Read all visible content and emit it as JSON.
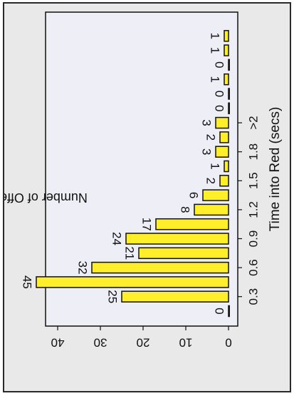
{
  "chart_data": {
    "type": "bar",
    "orientation": "rotated 90° clockwise",
    "xlabel": "Time into Red (secs)",
    "ylabel": "Number of Offenders",
    "x_ticks": [
      "0.3",
      "0.6",
      "0.9",
      "1.2",
      "1.5",
      "1.8",
      ">2"
    ],
    "y_ticks": [
      "0",
      "10",
      "20",
      "30",
      "40"
    ],
    "ylim": [
      0,
      46
    ],
    "grid": false,
    "values": [
      0,
      25,
      45,
      32,
      21,
      24,
      17,
      8,
      6,
      2,
      1,
      3,
      2,
      3,
      0,
      0,
      1,
      0,
      1,
      1
    ],
    "bar_color": "#ffee2a",
    "bar_edge_color": "#111111",
    "plot_background": "#eeeef6",
    "frame_background": "#e9e9e9"
  }
}
